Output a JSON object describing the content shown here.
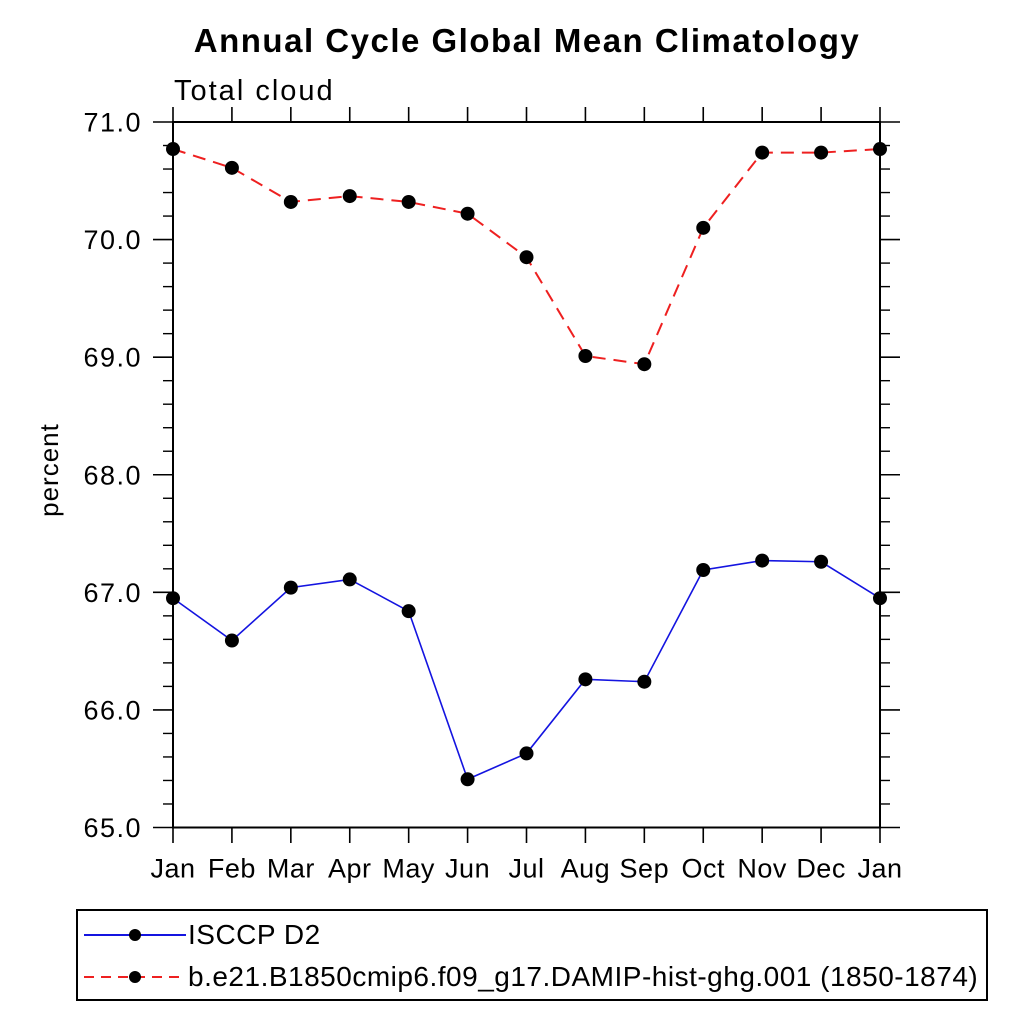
{
  "page": {
    "title": "Annual Cycle Global Mean Climatology",
    "subtitle": "Total cloud",
    "ylabel": "percent"
  },
  "chart_data": {
    "type": "line",
    "title": "Annual Cycle Global Mean Climatology",
    "left_subtitle": "Total cloud",
    "xlabel": "",
    "ylabel": "percent",
    "categories": [
      "Jan",
      "Feb",
      "Mar",
      "Apr",
      "May",
      "Jun",
      "Jul",
      "Aug",
      "Sep",
      "Oct",
      "Nov",
      "Dec",
      "Jan"
    ],
    "series": [
      {
        "name": "ISCCP D2",
        "color": "#1414e0",
        "line_style": "solid",
        "line_width": 1.6,
        "marker": "filled-circle",
        "marker_color": "#000000",
        "values": [
          66.95,
          66.59,
          67.04,
          67.11,
          66.84,
          65.41,
          65.63,
          66.26,
          66.24,
          67.19,
          67.27,
          67.26,
          66.95
        ]
      },
      {
        "name": "b.e21.B1850cmip6.f09_g17.DAMIP-hist-ghg.001 (1850-1874)",
        "color": "#ee2020",
        "line_style": "dashed",
        "line_width": 2,
        "marker": "filled-circle",
        "marker_color": "#000000",
        "values": [
          70.77,
          70.61,
          70.32,
          70.37,
          70.32,
          70.22,
          69.85,
          69.01,
          68.94,
          70.1,
          70.74,
          70.74,
          70.77
        ]
      }
    ],
    "ylim": [
      65.0,
      71.0
    ],
    "ytick_major_interval": 1.0,
    "ytick_minor_interval": 0.2,
    "ytick_labels": [
      "65.0",
      "66.0",
      "67.0",
      "68.0",
      "69.0",
      "70.0",
      "71.0"
    ],
    "grid": false,
    "legend_position": "bottom-left-box",
    "axis_color": "#000000"
  }
}
